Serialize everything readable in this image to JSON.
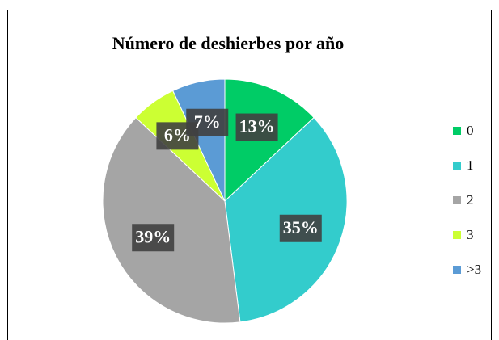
{
  "chart_data": {
    "type": "pie",
    "title": "Número de deshierbes por año",
    "categories": [
      "0",
      "1",
      "2",
      "3",
      ">3"
    ],
    "values": [
      13,
      35,
      39,
      6,
      7
    ],
    "value_labels": [
      "13%",
      "35%",
      "39%",
      "6%",
      "7%"
    ],
    "colors": [
      "#00cc66",
      "#33cccc",
      "#a5a5a5",
      "#ccff33",
      "#5b9bd5"
    ],
    "legend": "right"
  }
}
